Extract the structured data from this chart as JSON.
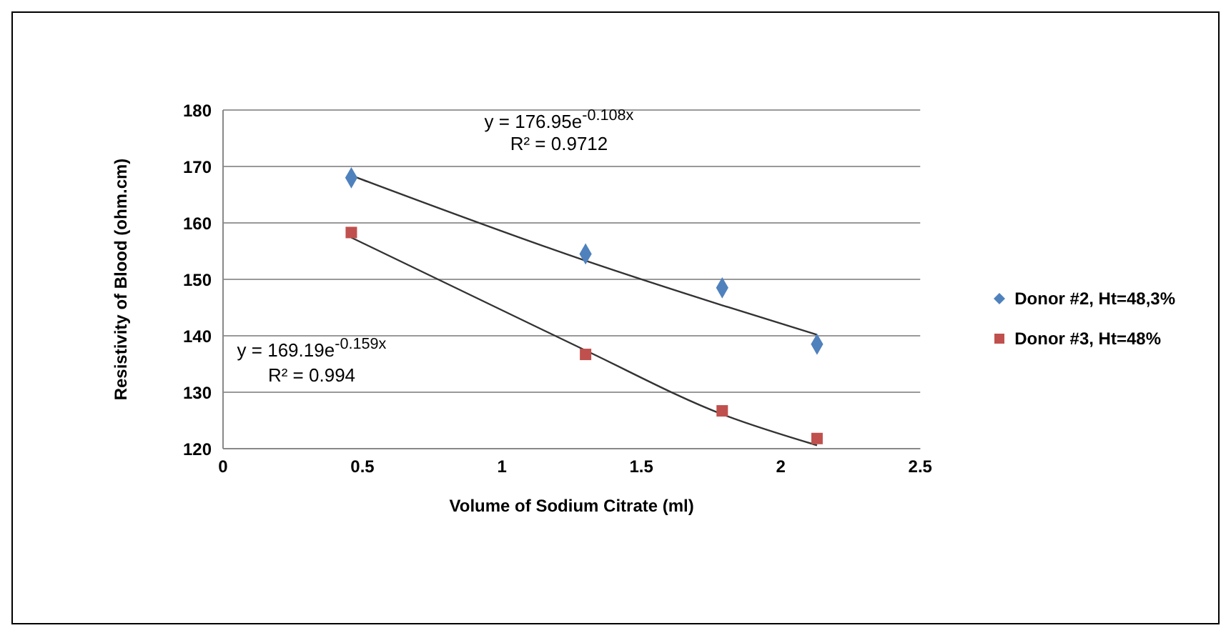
{
  "chart_data": {
    "type": "scatter",
    "xlabel": "Volume of Sodium Citrate (ml)",
    "ylabel": "Resistivity of Blood (ohm.cm)",
    "xlim": [
      0,
      2.5
    ],
    "xticks": [
      0,
      0.5,
      1,
      1.5,
      2,
      2.5
    ],
    "ylim": [
      120,
      180
    ],
    "yticks": [
      120,
      130,
      140,
      150,
      160,
      170,
      180
    ],
    "grid": "y",
    "legend": "right",
    "series": [
      {
        "name": "Donor #2, Ht=48,3%",
        "color": "#4f81bd",
        "marker": "diamond",
        "x": [
          0.46,
          1.3,
          1.79,
          2.13
        ],
        "values": [
          168,
          154.5,
          148.5,
          138.5
        ]
      },
      {
        "name": "Donor #3, Ht=48%",
        "color": "#c0504d",
        "marker": "square",
        "x": [
          0.46,
          1.3,
          1.79,
          2.13
        ],
        "values": [
          158.3,
          136.7,
          126.7,
          121.8
        ]
      },
      {
        "type": "line",
        "color": "#333333",
        "marker": "none",
        "x": [
          0.46,
          1.3,
          1.79,
          2.13
        ],
        "values": [
          168.4,
          153.3,
          145.4,
          140.2
        ]
      },
      {
        "type": "line",
        "color": "#333333",
        "marker": "none",
        "x": [
          0.46,
          1.3,
          1.79,
          2.13
        ],
        "values": [
          157.4,
          137.4,
          126.1,
          120.6
        ]
      }
    ],
    "annotations": [
      "y = 176.95e$^{-0.108x}$",
      "R² = 0.9712",
      "y = 169.19e$^{-0.159x}$",
      "R² = 0.994"
    ]
  }
}
